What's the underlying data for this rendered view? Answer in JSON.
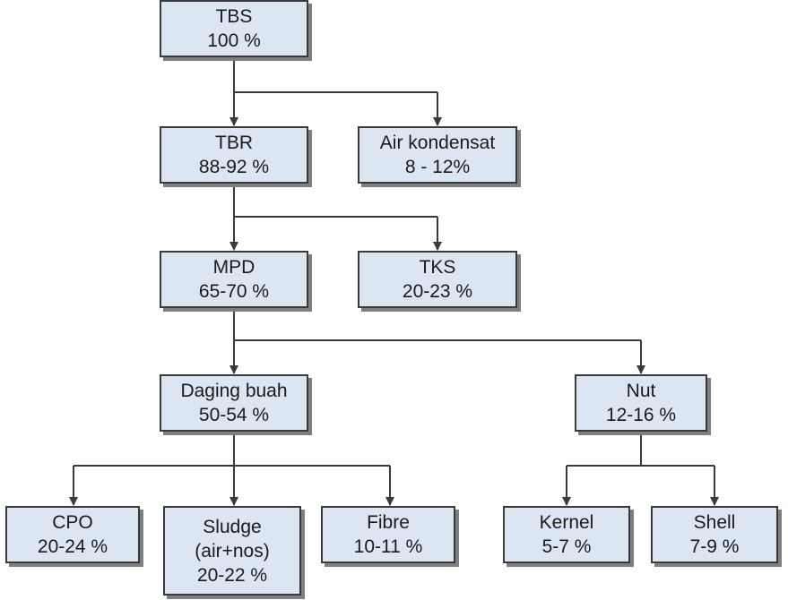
{
  "nodes": {
    "tbs": {
      "name": "TBS",
      "value": "100 %"
    },
    "tbr": {
      "name": "TBR",
      "value": "88-92 %"
    },
    "air": {
      "name": "Air kondensat",
      "value": "8 - 12%"
    },
    "mpd": {
      "name": "MPD",
      "value": "65-70 %"
    },
    "tks": {
      "name": "TKS",
      "value": "20-23 %"
    },
    "daging": {
      "name": "Daging buah",
      "value": "50-54 %"
    },
    "nut": {
      "name": "Nut",
      "value": "12-16 %"
    },
    "cpo": {
      "name": "CPO",
      "value": "20-24 %"
    },
    "sludge": {
      "name": "Sludge",
      "detail": "(air+nos)",
      "value": "20-22 %"
    },
    "fibre": {
      "name": "Fibre",
      "value": "10-11 %"
    },
    "kernel": {
      "name": "Kernel",
      "value": "5-7 %"
    },
    "shell": {
      "name": "Shell",
      "value": "7-9 %"
    }
  },
  "colors": {
    "box_fill": "#dce6f2",
    "box_border": "#3a3a3a",
    "box_shadow": "#7f7f7f",
    "connector": "#3a3a3a"
  }
}
